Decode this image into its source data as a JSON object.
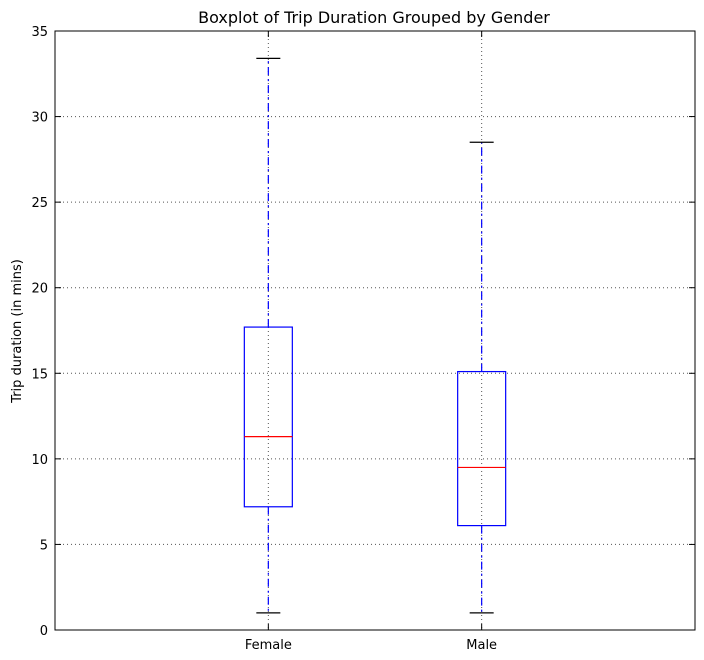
{
  "chart_data": {
    "type": "boxplot",
    "title": "Boxplot of Trip Duration Grouped by Gender",
    "xlabel": "",
    "ylabel": "Trip duration (in mins)",
    "ylim": [
      0,
      35
    ],
    "yticks": [
      0,
      5,
      10,
      15,
      20,
      25,
      30,
      35
    ],
    "grid": true,
    "categories": [
      "Female",
      "Male"
    ],
    "boxes": [
      {
        "category": "Female",
        "whisker_low": 1.0,
        "q1": 7.2,
        "median": 11.3,
        "q3": 17.7,
        "whisker_high": 33.4
      },
      {
        "category": "Male",
        "whisker_low": 1.0,
        "q1": 6.1,
        "median": 9.5,
        "q3": 15.1,
        "whisker_high": 28.5
      }
    ],
    "colors": {
      "box": "#0000ff",
      "median": "#ff0000",
      "whisker": "#0000ff",
      "cap": "#000000",
      "grid": "#555555",
      "frame": "#000000"
    }
  }
}
